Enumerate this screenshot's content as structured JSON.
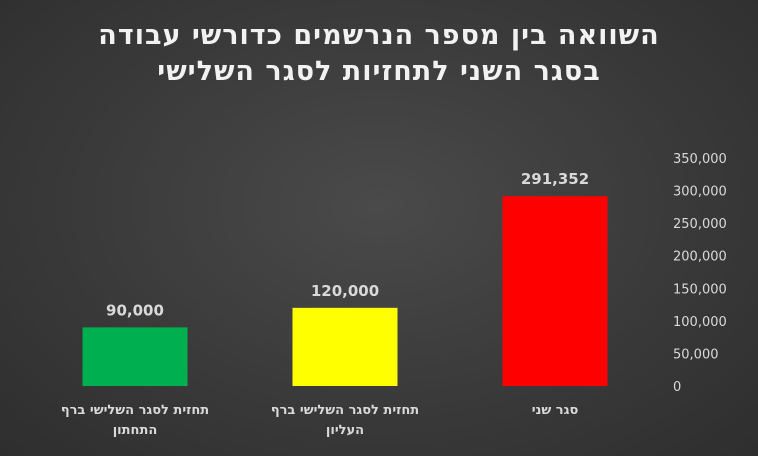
{
  "chart_data": {
    "type": "bar",
    "title": "השוואה בין מספר הנרשמים כדורשי עבודה בסגר השני לתחזיות לסגר השלישי",
    "categories": [
      [
        "תחזית לסגר השלישי ברף",
        "התחתון"
      ],
      [
        "תחזית לסגר השלישי ברף",
        "העליון"
      ],
      [
        "סגר שני"
      ]
    ],
    "values": [
      90000,
      120000,
      291352
    ],
    "data_labels": [
      "90,000",
      "120,000",
      "291,352"
    ],
    "colors": [
      "#00b050",
      "#ffff00",
      "#ff0000"
    ],
    "ylim": [
      0,
      350000
    ],
    "yticks": [
      0,
      50000,
      100000,
      150000,
      200000,
      250000,
      300000,
      350000
    ],
    "ytick_labels": [
      "0",
      "50,000",
      "100,000",
      "150,000",
      "200,000",
      "250,000",
      "300,000",
      "350,000"
    ],
    "y_axis_position": "right",
    "grid": false,
    "legend": "none",
    "xlabel": "",
    "ylabel": ""
  }
}
